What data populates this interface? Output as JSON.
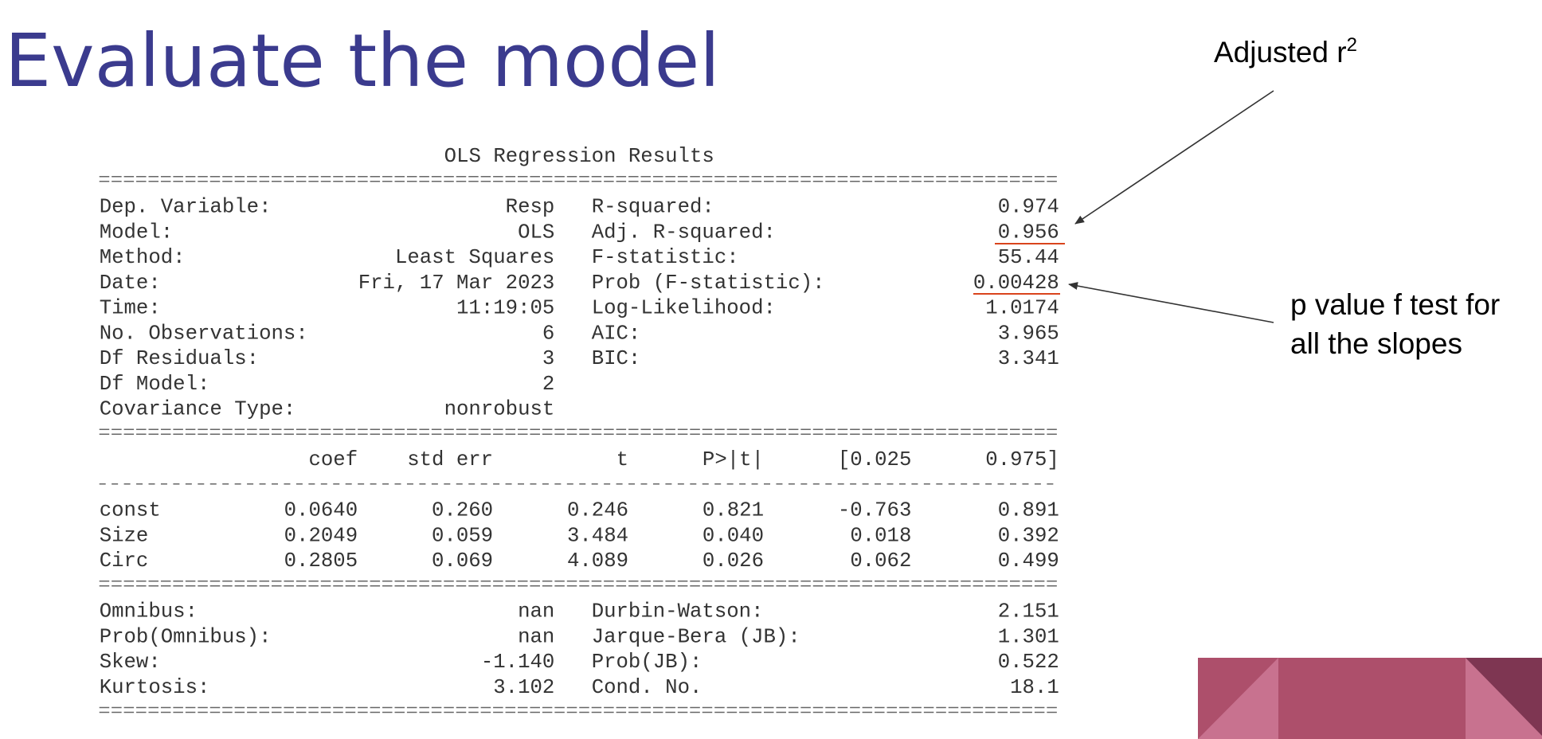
{
  "title": "Evaluate the model",
  "ols": {
    "title": "OLS Regression Results",
    "model_info": [
      {
        "label": "Dep. Variable:",
        "value": "Resp"
      },
      {
        "label": "Model:",
        "value": "OLS"
      },
      {
        "label": "Method:",
        "value": "Least Squares"
      },
      {
        "label": "Date:",
        "value": "Fri, 17 Mar 2023"
      },
      {
        "label": "Time:",
        "value": "11:19:05"
      },
      {
        "label": "No. Observations:",
        "value": "6"
      },
      {
        "label": "Df Residuals:",
        "value": "3"
      },
      {
        "label": "Df Model:",
        "value": "2"
      },
      {
        "label": "Covariance Type:",
        "value": "nonrobust"
      }
    ],
    "fit_stats": [
      {
        "label": "R-squared:",
        "value": "0.974"
      },
      {
        "label": "Adj. R-squared:",
        "value": "0.956"
      },
      {
        "label": "F-statistic:",
        "value": "55.44"
      },
      {
        "label": "Prob (F-statistic):",
        "value": "0.00428"
      },
      {
        "label": "Log-Likelihood:",
        "value": "1.0174"
      },
      {
        "label": "AIC:",
        "value": "3.965"
      },
      {
        "label": "BIC:",
        "value": "3.341"
      }
    ],
    "coef_table": {
      "header": [
        "coef",
        "std err",
        "t",
        "P>|t|",
        "[0.025",
        "0.975]"
      ],
      "rows": [
        {
          "name": "const",
          "values": [
            "0.0640",
            "0.260",
            "0.246",
            "0.821",
            "-0.763",
            "0.891"
          ]
        },
        {
          "name": "Size",
          "values": [
            "0.2049",
            "0.059",
            "3.484",
            "0.040",
            "0.018",
            "0.392"
          ]
        },
        {
          "name": "Circ",
          "values": [
            "0.2805",
            "0.069",
            "4.089",
            "0.026",
            "0.062",
            "0.499"
          ]
        }
      ]
    },
    "diagnostics_left": [
      {
        "label": "Omnibus:",
        "value": "nan"
      },
      {
        "label": "Prob(Omnibus):",
        "value": "nan"
      },
      {
        "label": "Skew:",
        "value": "-1.140"
      },
      {
        "label": "Kurtosis:",
        "value": "3.102"
      }
    ],
    "diagnostics_right": [
      {
        "label": "Durbin-Watson:",
        "value": "2.151"
      },
      {
        "label": "Jarque-Bera (JB):",
        "value": "1.301"
      },
      {
        "label": "Prob(JB):",
        "value": "0.522"
      },
      {
        "label": "Cond. No.",
        "value": "18.1"
      }
    ]
  },
  "annotations": {
    "adjusted_r2": {
      "text": "Adjusted r",
      "superscript": "2"
    },
    "p_value": [
      "p value f test for",
      "all the slopes"
    ]
  }
}
